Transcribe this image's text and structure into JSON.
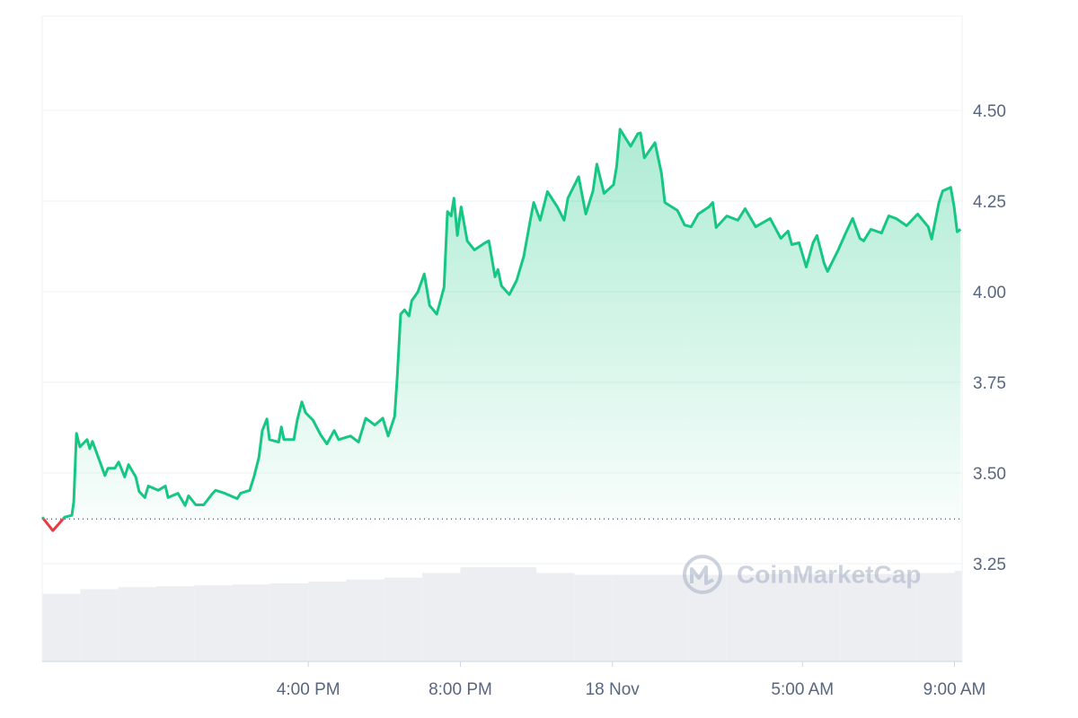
{
  "chart_data": {
    "type": "line",
    "x": [
      9.0,
      9.28,
      9.59,
      9.78,
      9.83,
      9.9,
      9.99,
      10.18,
      10.25,
      10.32,
      10.51,
      10.65,
      10.73,
      10.91,
      11.01,
      11.17,
      11.27,
      11.46,
      11.55,
      11.7,
      11.79,
      12.05,
      12.24,
      12.31,
      12.57,
      12.76,
      12.85,
      13.04,
      13.25,
      13.47,
      13.56,
      13.8,
      14.13,
      14.22,
      14.46,
      14.58,
      14.7,
      14.79,
      14.91,
      14.98,
      15.22,
      15.29,
      15.36,
      15.62,
      15.71,
      15.83,
      15.93,
      16.12,
      16.33,
      16.49,
      16.68,
      16.8,
      17.11,
      17.32,
      17.51,
      17.75,
      17.96,
      18.1,
      18.27,
      18.34,
      18.43,
      18.53,
      18.65,
      18.72,
      18.88,
      19.05,
      19.19,
      19.38,
      19.57,
      19.66,
      19.76,
      19.83,
      19.92,
      20.02,
      20.18,
      20.37,
      20.65,
      20.75,
      20.91,
      20.99,
      21.08,
      21.29,
      21.48,
      21.67,
      21.84,
      21.93,
      22.1,
      22.29,
      22.55,
      22.73,
      22.83,
      23.11,
      23.3,
      23.49,
      23.59,
      23.78,
      24.03,
      24.11,
      24.2,
      24.48,
      24.67,
      24.74,
      24.84,
      25.12,
      25.29,
      25.38,
      25.71,
      25.9,
      26.07,
      26.26,
      26.54,
      26.64,
      26.73,
      27.01,
      27.3,
      27.49,
      27.77,
      28.15,
      28.43,
      28.62,
      28.72,
      28.91,
      29.1,
      29.28,
      29.38,
      29.57,
      29.66,
      29.94,
      30.13,
      30.32,
      30.51,
      30.61,
      30.8,
      31.08,
      31.27,
      31.46,
      31.74,
      32.03,
      32.31,
      32.4,
      32.59,
      32.69,
      32.9,
      32.99,
      33.07,
      33.16
    ],
    "series": [
      {
        "color": "#16c784",
        "below_color": "#ea3943",
        "values": [
          3.378,
          3.341,
          3.378,
          3.383,
          3.42,
          3.609,
          3.572,
          3.592,
          3.567,
          3.587,
          3.533,
          3.493,
          3.513,
          3.513,
          3.53,
          3.489,
          3.523,
          3.489,
          3.449,
          3.432,
          3.464,
          3.452,
          3.464,
          3.432,
          3.444,
          3.41,
          3.437,
          3.412,
          3.412,
          3.442,
          3.452,
          3.444,
          3.429,
          3.444,
          3.452,
          3.493,
          3.543,
          3.617,
          3.649,
          3.592,
          3.585,
          3.627,
          3.592,
          3.592,
          3.646,
          3.696,
          3.666,
          3.646,
          3.604,
          3.58,
          3.617,
          3.592,
          3.602,
          3.585,
          3.651,
          3.632,
          3.651,
          3.602,
          3.656,
          3.765,
          3.938,
          3.95,
          3.933,
          3.975,
          3.999,
          4.049,
          3.962,
          3.938,
          4.012,
          4.221,
          4.209,
          4.258,
          4.155,
          4.234,
          4.14,
          4.115,
          4.135,
          4.14,
          4.041,
          4.061,
          4.016,
          3.992,
          4.031,
          4.098,
          4.197,
          4.246,
          4.197,
          4.276,
          4.234,
          4.197,
          4.258,
          4.317,
          4.214,
          4.278,
          4.352,
          4.271,
          4.295,
          4.345,
          4.448,
          4.401,
          4.436,
          4.438,
          4.369,
          4.411,
          4.327,
          4.246,
          4.224,
          4.184,
          4.179,
          4.214,
          4.234,
          4.246,
          4.177,
          4.209,
          4.197,
          4.229,
          4.179,
          4.202,
          4.147,
          4.167,
          4.13,
          4.135,
          4.068,
          4.135,
          4.155,
          4.078,
          4.056,
          4.115,
          4.16,
          4.202,
          4.147,
          4.14,
          4.172,
          4.162,
          4.209,
          4.202,
          4.182,
          4.214,
          4.179,
          4.145,
          4.246,
          4.278,
          4.288,
          4.234,
          4.165,
          4.172
        ]
      }
    ],
    "baseline": 3.373,
    "volume": {
      "color": "#eceef2",
      "x": [
        9,
        10,
        11,
        12,
        13,
        14,
        15,
        16,
        17,
        18,
        19,
        20,
        21,
        22,
        23,
        24,
        25,
        26,
        27,
        28,
        29,
        30,
        31,
        32,
        33
      ],
      "values": [
        71,
        76,
        78,
        79,
        80,
        81,
        82,
        84,
        86,
        88,
        93,
        99,
        99,
        93,
        91,
        91,
        91,
        91,
        91,
        92,
        92,
        92,
        92,
        93,
        95
      ]
    },
    "xlim": [
      9,
      33.2
    ],
    "ylim": [
      2.98,
      4.76
    ],
    "xticks": [
      {
        "value": 16,
        "label": "4:00 PM"
      },
      {
        "value": 20,
        "label": "8:00 PM"
      },
      {
        "value": 24,
        "label": "18 Nov"
      },
      {
        "value": 29,
        "label": "5:00 AM"
      },
      {
        "value": 33,
        "label": "9:00 AM"
      }
    ],
    "yticks": [
      3.25,
      {
        "value": 3.5,
        "label": "3.50"
      },
      3.75,
      {
        "value": 4,
        "label": "4.00"
      },
      4.25,
      {
        "value": 4.5,
        "label": "4.50"
      }
    ],
    "grid": true,
    "watermark": "CoinMarketCap"
  }
}
